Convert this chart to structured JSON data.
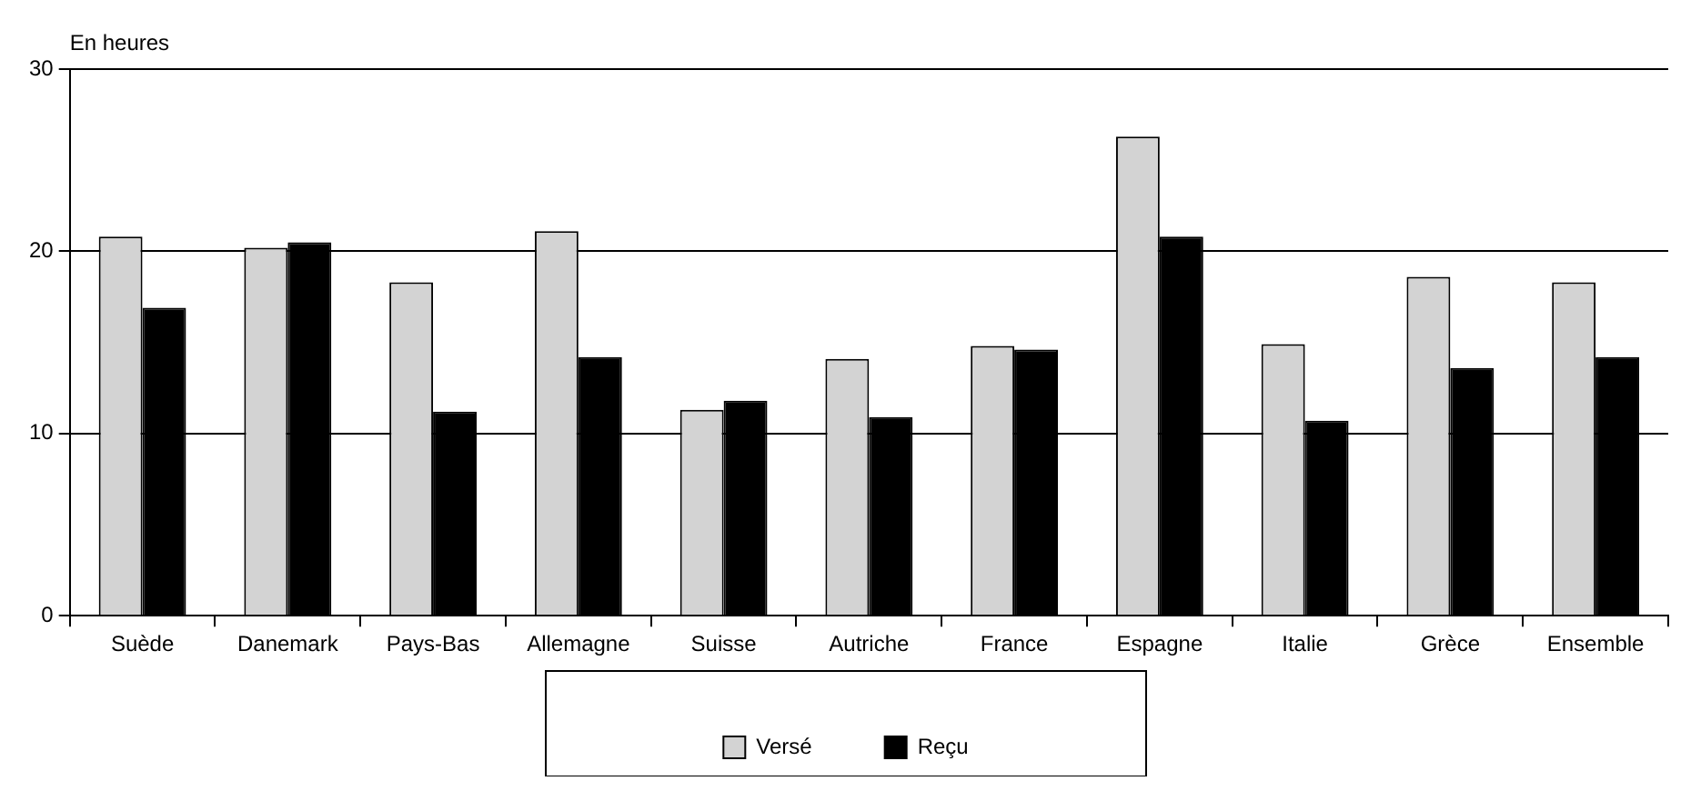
{
  "chart_data": {
    "type": "bar",
    "ylabel": "En heures",
    "categories": [
      "Suède",
      "Danemark",
      "Pays-Bas",
      "Allemagne",
      "Suisse",
      "Autriche",
      "France",
      "Espagne",
      "Italie",
      "Grèce",
      "Ensemble"
    ],
    "series": [
      {
        "name": "Versé",
        "color": "#d3d3d3",
        "values": [
          20.8,
          20.2,
          18.3,
          21.1,
          11.3,
          14.1,
          14.8,
          26.3,
          14.9,
          18.6,
          18.3
        ]
      },
      {
        "name": "Reçu",
        "color": "#000000",
        "values": [
          16.9,
          20.5,
          11.2,
          14.2,
          11.8,
          10.9,
          14.6,
          20.8,
          10.7,
          13.6,
          14.2
        ]
      }
    ],
    "ylim": [
      0,
      30
    ],
    "yticks": [
      0,
      10,
      20,
      30
    ],
    "grid": "y",
    "legend": "bottom"
  }
}
